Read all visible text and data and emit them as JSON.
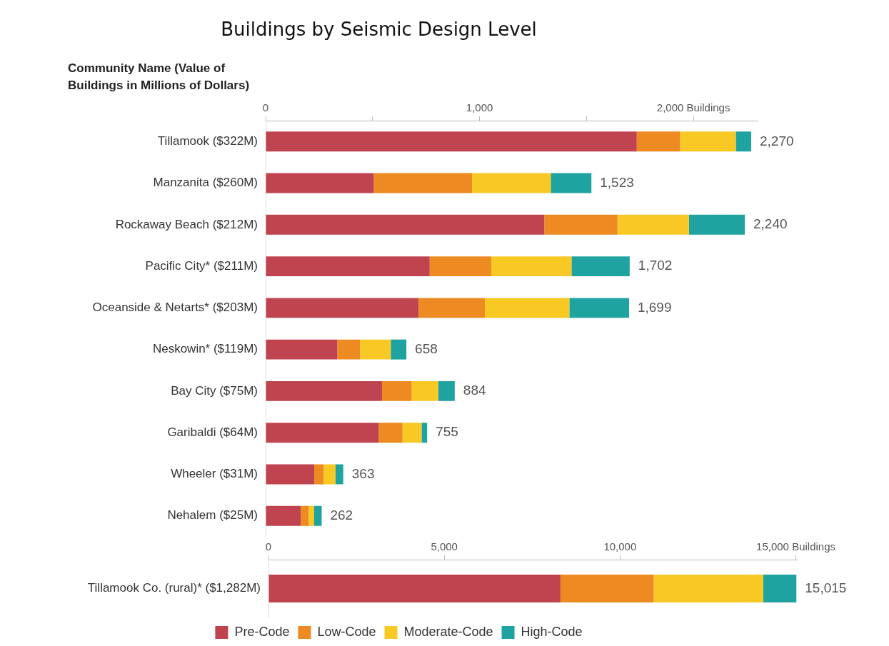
{
  "chart_data": [
    {
      "type": "bar",
      "orientation": "horizontal",
      "stacked": true,
      "title": "Buildings by Seismic Design Level",
      "ylabel": "Community Name (Value of Buildings in Millions of Dollars)",
      "categories": [
        "Tillamook ($322M)",
        "Manzanita ($260M)",
        "Rockaway Beach ($212M)",
        "Pacific City* ($211M)",
        "Oceanside & Netarts* ($203M)",
        "Neskowin* ($119M)",
        "Bay City ($75M)",
        "Garibaldi ($64M)",
        "Wheeler ($31M)",
        "Nehalem ($25M)"
      ],
      "series": [
        {
          "color": "#c0444f",
          "values": [
            1735,
            506,
            1303,
            767,
            715,
            335,
            544,
            529,
            227,
            164
          ]
        },
        {
          "color": "#ee8a22",
          "values": [
            203,
            459,
            342,
            288,
            310,
            107,
            139,
            111,
            44,
            37
          ]
        },
        {
          "color": "#f8c925",
          "values": [
            260,
            368,
            334,
            375,
            395,
            143,
            124,
            89,
            56,
            26
          ]
        },
        {
          "color": "#1fa3a0",
          "values": [
            72,
            190,
            261,
            272,
            279,
            73,
            77,
            26,
            36,
            35
          ]
        }
      ],
      "totals": [
        "2,270",
        "1,523",
        "2,240",
        "1,702",
        "1,699",
        "658",
        "884",
        "755",
        "363",
        "262"
      ],
      "xlim": [
        0,
        2300
      ],
      "xticks": [
        0,
        {
          "value": 500,
          "label": null
        },
        {
          "value": 1000,
          "label": "1,000"
        },
        {
          "value": 1500,
          "label": null
        },
        {
          "value": 2000,
          "label": "2,000 Buildings"
        }
      ]
    },
    {
      "type": "bar",
      "orientation": "horizontal",
      "stacked": true,
      "categories": [
        "Tillamook Co. (rural)* ($1,282M)"
      ],
      "series": [
        {
          "name": "Pre-Code",
          "color": "#c0444f",
          "values": [
            8305
          ]
        },
        {
          "name": "Low-Code",
          "color": "#ee8a22",
          "values": [
            2650
          ]
        },
        {
          "name": "Moderate-Code",
          "color": "#f8c925",
          "values": [
            3120
          ]
        },
        {
          "name": "High-Code",
          "color": "#1fa3a0",
          "values": [
            940
          ]
        }
      ],
      "totals": [
        "15,015"
      ],
      "xlim": [
        0,
        15050
      ],
      "xticks": [
        0,
        {
          "value": 5000,
          "label": "5,000"
        },
        {
          "value": 10000,
          "label": "10,000"
        },
        {
          "value": 15000,
          "label": "15,000 Buildings"
        }
      ],
      "legend": "bottom"
    }
  ]
}
